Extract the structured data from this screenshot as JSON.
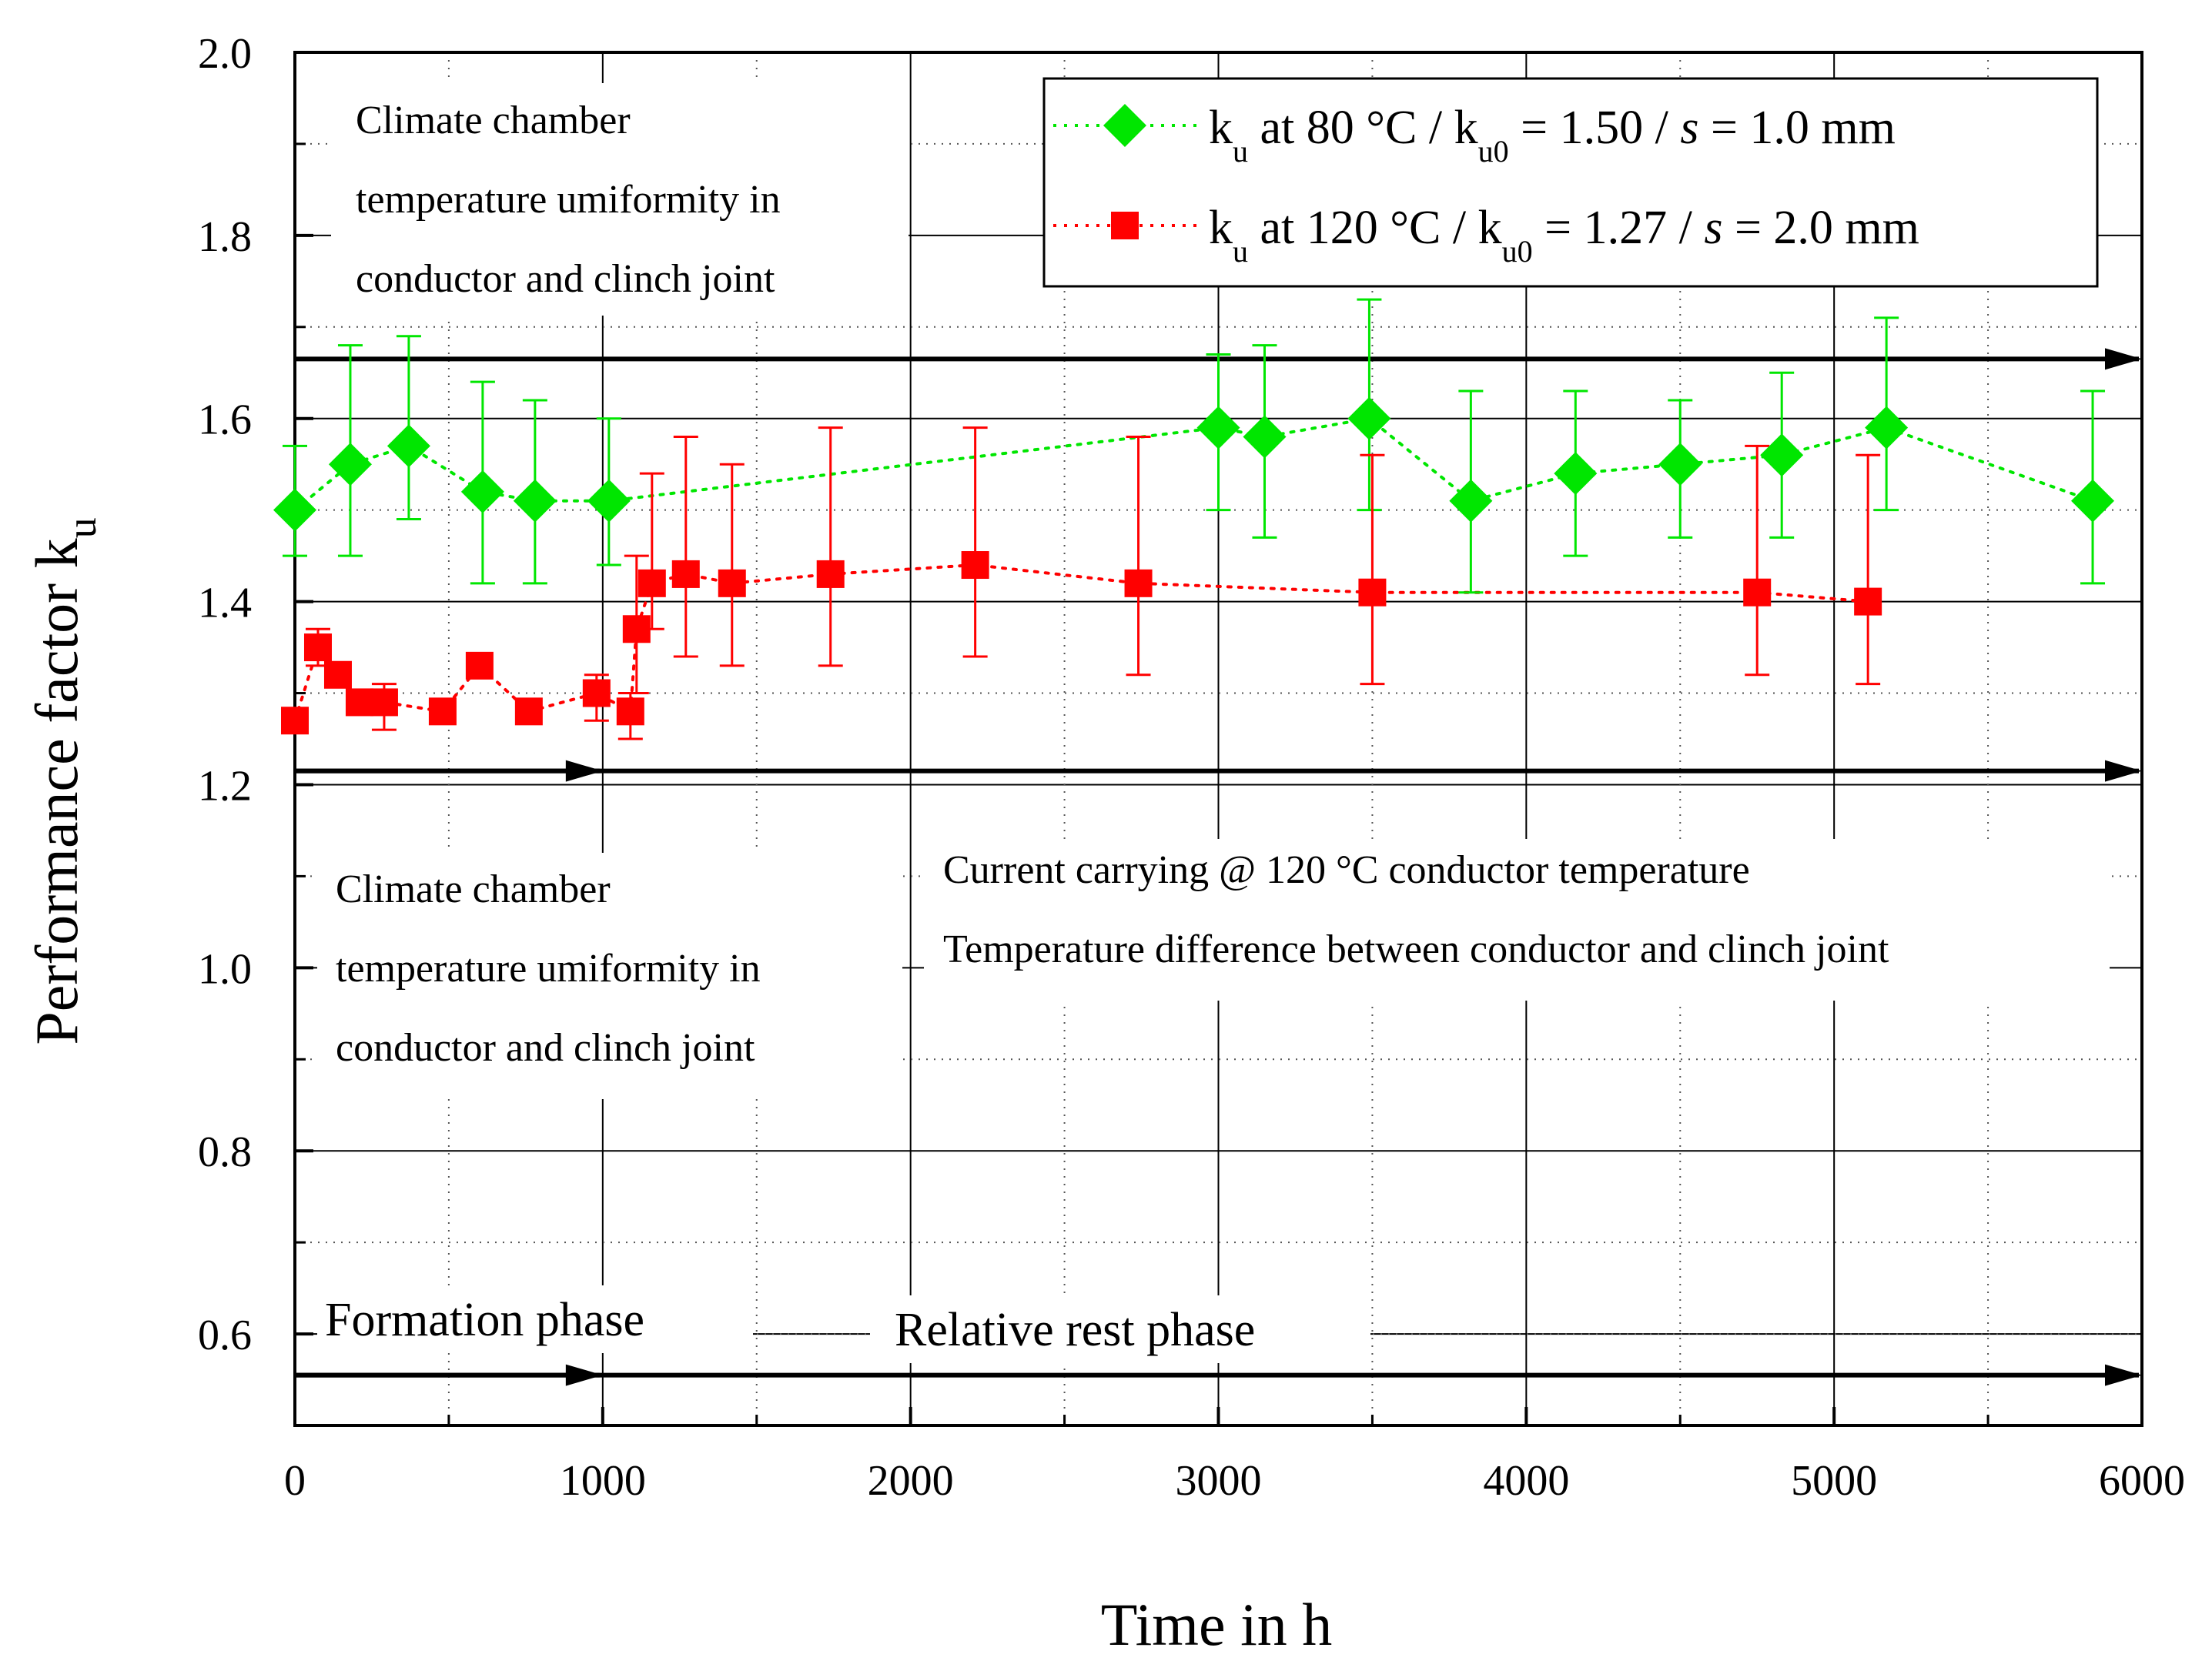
{
  "chart_data": {
    "type": "scatter",
    "title": "",
    "xlabel": "Time in h",
    "ylabel": "Performance factor k",
    "ylabel_sub": "u",
    "xlim": [
      0,
      6000
    ],
    "ylim": [
      0.5,
      2.0
    ],
    "x_ticks": [
      0,
      1000,
      2000,
      3000,
      4000,
      5000,
      6000
    ],
    "x_tick_labels": [
      "0",
      "1000",
      "2000",
      "3000",
      "4000",
      "5000",
      "6000"
    ],
    "y_ticks": [
      0.6,
      0.8,
      1.0,
      1.2,
      1.4,
      1.6,
      1.8,
      2.0
    ],
    "y_tick_labels": [
      "0.6",
      "0.8",
      "1.0",
      "1.2",
      "1.4",
      "1.6",
      "1.8",
      "2.0"
    ],
    "grid": true,
    "legend_position": "top-right",
    "series": [
      {
        "name": "k_u at 80 °C / k_u0 = 1.50 / s = 1.0 mm",
        "legend": {
          "k": "k",
          "u": "u",
          "text1": " at 80 °C / k",
          "u0": "u0",
          "text2": " = 1.50 / ",
          "s": "s",
          "text3": " = 1.0 mm"
        },
        "color": "#00e600",
        "marker": "diamond",
        "x": [
          0,
          180,
          370,
          610,
          780,
          1020,
          3000,
          3150,
          3490,
          3820,
          4160,
          4500,
          4830,
          5170,
          5840
        ],
        "y": [
          1.5,
          1.55,
          1.57,
          1.52,
          1.51,
          1.51,
          1.59,
          1.58,
          1.6,
          1.51,
          1.54,
          1.55,
          1.56,
          1.59,
          1.51
        ],
        "err_low": [
          1.45,
          1.45,
          1.49,
          1.42,
          1.42,
          1.44,
          1.5,
          1.47,
          1.5,
          1.41,
          1.45,
          1.47,
          1.47,
          1.5,
          1.42
        ],
        "err_high": [
          1.57,
          1.68,
          1.69,
          1.64,
          1.62,
          1.6,
          1.67,
          1.68,
          1.73,
          1.63,
          1.63,
          1.62,
          1.65,
          1.71,
          1.63
        ]
      },
      {
        "name": "k_u at 120 °C / k_u0 = 1.27 / s = 2.0 mm",
        "legend": {
          "k": "k",
          "u": "u",
          "text1": " at 120 °C / k",
          "u0": "u0",
          "text2": " = 1.27 / ",
          "s": "s",
          "text3": " = 2.0 mm"
        },
        "color": "#ff0000",
        "marker": "square",
        "x": [
          0,
          75,
          140,
          210,
          290,
          480,
          600,
          760,
          980,
          1090,
          1110,
          1160,
          1270,
          1420,
          1740,
          2210,
          2740,
          3500,
          4750,
          5110
        ],
        "y": [
          1.27,
          1.35,
          1.32,
          1.29,
          1.29,
          1.28,
          1.33,
          1.28,
          1.3,
          1.28,
          1.37,
          1.42,
          1.43,
          1.42,
          1.43,
          1.44,
          1.42,
          1.41,
          1.41,
          1.4
        ],
        "err_low": [
          null,
          1.33,
          null,
          null,
          1.26,
          null,
          null,
          null,
          1.27,
          1.25,
          1.3,
          1.37,
          1.34,
          1.33,
          1.33,
          1.34,
          1.32,
          1.31,
          1.32,
          1.31
        ],
        "err_high": [
          null,
          1.37,
          null,
          null,
          1.31,
          null,
          null,
          null,
          1.32,
          1.3,
          1.45,
          1.54,
          1.58,
          1.55,
          1.59,
          1.59,
          1.58,
          1.56,
          1.57,
          1.56
        ]
      }
    ],
    "annotations": {
      "upper_left_block": [
        "Climate chamber",
        "temperature umiformity in",
        "conductor and clinch joint"
      ],
      "lower_left_block": [
        "Climate chamber",
        "temperature umiformity in",
        "conductor and clinch joint"
      ],
      "lower_right_block": [
        "Current carrying @ 120 °C conductor temperature",
        "Temperature difference between conductor and clinch joint"
      ],
      "formation_phase": "Formation phase",
      "relative_rest_phase": "Relative rest phase"
    },
    "phase_arrows": [
      {
        "y": 1.665,
        "x0": 0,
        "x1": 6000
      },
      {
        "y": 1.215,
        "x0": 0,
        "x1": 1000
      },
      {
        "y": 1.215,
        "x0": 0,
        "x1": 6000
      },
      {
        "y": 0.555,
        "x0": 0,
        "x1": 1000
      },
      {
        "y": 0.555,
        "x0": 0,
        "x1": 6000
      }
    ]
  }
}
